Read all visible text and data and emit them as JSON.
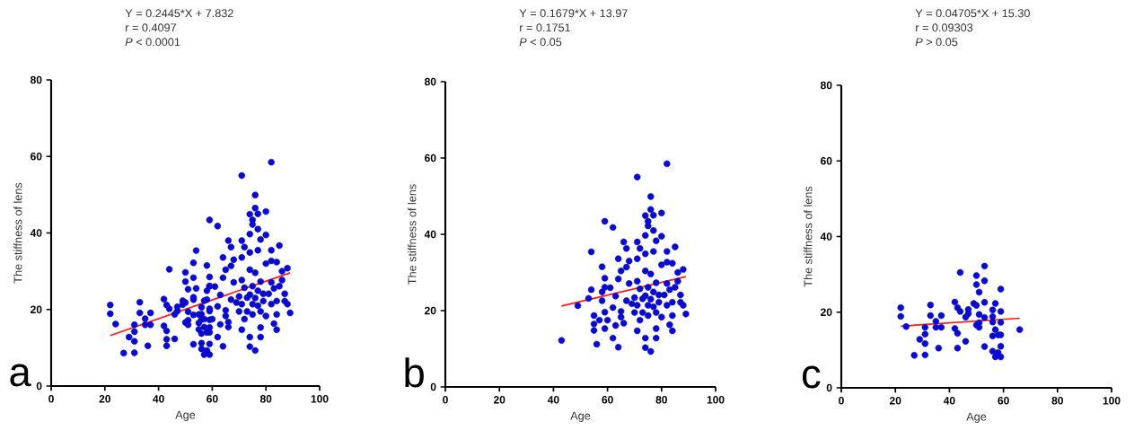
{
  "chart_data": [
    {
      "type": "scatter",
      "title": "Y = 0.2445*X + 7.832",
      "annotations": [
        "r = 0.4097",
        "*P* < 0.0001",
        "a"
      ],
      "xlabel": "Age",
      "ylabel": "The stiffness of lens",
      "xlim": [
        0,
        100
      ],
      "ylim": [
        0,
        80
      ],
      "xticks": [
        0,
        20,
        40,
        60,
        80,
        100
      ],
      "yticks": [
        0,
        20,
        40,
        60,
        80
      ],
      "series": [
        {
          "marker": "circle",
          "color": "#0a0acd",
          "x": [
            22,
            22,
            24,
            29,
            27,
            31,
            31,
            31,
            31,
            33,
            33,
            35,
            35,
            36,
            37,
            37,
            42,
            42,
            43,
            43,
            43,
            44,
            44,
            46,
            46,
            47,
            47,
            49,
            50,
            50,
            50,
            50,
            51,
            51,
            51,
            51,
            53,
            53,
            53,
            53,
            53,
            56,
            56,
            56,
            56,
            56,
            57,
            57,
            57,
            58,
            58,
            59,
            59,
            59,
            59,
            59,
            59,
            66,
            43,
            49,
            53,
            54,
            54,
            55,
            55,
            55,
            56,
            57,
            58,
            58,
            58,
            59,
            59,
            59,
            59,
            59,
            60,
            61,
            62,
            62,
            62,
            63,
            63,
            64,
            64,
            64,
            65,
            65,
            65,
            66,
            66,
            67,
            67,
            67,
            68,
            68,
            69,
            70,
            70,
            71,
            71,
            71,
            71,
            71,
            71,
            72,
            72,
            72,
            73,
            73,
            74,
            74,
            74,
            74,
            74,
            74,
            74,
            75,
            75,
            75,
            75,
            75,
            76,
            76,
            76,
            76,
            76,
            77,
            77,
            77,
            77,
            77,
            78,
            78,
            78,
            78,
            78,
            79,
            79,
            80,
            80,
            80,
            80,
            81,
            82,
            82,
            82,
            82,
            82,
            83,
            83,
            84,
            84,
            84,
            84,
            85,
            85,
            86,
            86,
            87,
            87,
            88,
            88,
            89
          ],
          "values": [
            21.2,
            18.9,
            16.2,
            12.8,
            8.6,
            16.0,
            14.2,
            11.7,
            8.7,
            21.9,
            19.1,
            17.6,
            16.0,
            10.5,
            19.1,
            16.0,
            22.7,
            15.7,
            21.2,
            14.4,
            10.5,
            30.5,
            20.2,
            12.3,
            18.7,
            20.7,
            19.6,
            22.3,
            29.7,
            27.3,
            21.8,
            16.6,
            25.3,
            19.4,
            17.2,
            16.0,
            32.2,
            28.3,
            22.6,
            18.6,
            10.9,
            20.6,
            18.8,
            17.4,
            13.7,
            9.7,
            22.3,
            15.4,
            8.2,
            9.3,
            14.0,
            26.1,
            20.2,
            17.3,
            14.0,
            11.0,
            8.2,
            15.4,
            12.2,
            21.3,
            23.2,
            25.5,
            35.4,
            18.7,
            16.5,
            14.8,
            11.2,
            17.5,
            22.6,
            24.9,
            31.5,
            43.4,
            28.5,
            26.1,
            19.6,
            15.3,
            17.5,
            26.0,
            41.8,
            20.8,
            12.8,
            16.1,
            23.8,
            28.3,
            33.6,
            10.4,
            30.4,
            19.8,
            18.3,
            38.0,
            16.7,
            36.3,
            31.4,
            22.6,
            27.1,
            33.0,
            21.8,
            19.5,
            23.4,
            55.0,
            38.0,
            33.6,
            27.7,
            14.7,
            21.4,
            36.3,
            17.5,
            25.7,
            23.1,
            19.5,
            44.9,
            39.7,
            34.9,
            12.8,
            10.3,
            30.4,
            23.9,
            43.4,
            42.2,
            18.7,
            21.4,
            26.1,
            49.9,
            46.5,
            29.6,
            9.3,
            23.0,
            45.0,
            41.0,
            35.5,
            21.0,
            24.9,
            38.3,
            12.8,
            27.3,
            15.3,
            19.5,
            24.1,
            22.2,
            45.6,
            39.5,
            32.0,
            18.3,
            24.1,
            58.5,
            35.5,
            32.7,
            27.1,
            21.4,
            16.3,
            25.5,
            32.4,
            14.7,
            18.7,
            22.2,
            36.7,
            26.1,
            30.0,
            27.7,
            24.1,
            22.2,
            30.8,
            21.4,
            19.1
          ]
        },
        {
          "type": "line",
          "marker": "none",
          "color": "#ff1a1a",
          "x": [
            22,
            89
          ],
          "values": [
            13.2,
            29.6
          ]
        }
      ]
    },
    {
      "type": "scatter",
      "title": "Y = 0.1679*X + 13.97",
      "annotations": [
        "r = 0.1751",
        "*P* < 0.05",
        "b"
      ],
      "xlabel": "Age",
      "ylabel": "The stiffness of lens",
      "xlim": [
        0,
        100
      ],
      "ylim": [
        0,
        80
      ],
      "xticks": [
        0,
        20,
        40,
        60,
        80,
        100
      ],
      "yticks": [
        0,
        20,
        40,
        60,
        80
      ],
      "series": [
        {
          "marker": "circle",
          "color": "#0a0acd",
          "x": [
            43,
            49,
            53,
            54,
            54,
            55,
            55,
            55,
            56,
            57,
            58,
            58,
            58,
            59,
            59,
            59,
            59,
            59,
            60,
            61,
            62,
            62,
            62,
            63,
            63,
            64,
            64,
            64,
            65,
            65,
            65,
            66,
            66,
            67,
            67,
            67,
            68,
            68,
            69,
            70,
            70,
            71,
            71,
            71,
            71,
            71,
            71,
            72,
            72,
            72,
            73,
            73,
            74,
            74,
            74,
            74,
            74,
            74,
            74,
            75,
            75,
            75,
            75,
            75,
            76,
            76,
            76,
            76,
            76,
            77,
            77,
            77,
            77,
            77,
            78,
            78,
            78,
            78,
            78,
            79,
            79,
            80,
            80,
            80,
            80,
            81,
            82,
            82,
            82,
            82,
            82,
            83,
            83,
            84,
            84,
            84,
            84,
            85,
            85,
            86,
            86,
            87,
            87,
            88,
            88,
            89
          ],
          "values": [
            12.2,
            21.3,
            23.2,
            25.5,
            35.4,
            18.7,
            16.5,
            14.8,
            11.2,
            17.5,
            22.6,
            24.9,
            31.5,
            43.4,
            28.5,
            26.1,
            19.6,
            15.3,
            17.5,
            26.0,
            41.8,
            20.8,
            12.8,
            16.1,
            23.8,
            28.3,
            33.6,
            10.4,
            30.4,
            19.8,
            18.3,
            38.0,
            16.7,
            36.3,
            31.4,
            22.6,
            27.1,
            33.0,
            21.8,
            19.5,
            23.4,
            55.0,
            38.0,
            33.6,
            27.7,
            14.7,
            21.4,
            36.3,
            17.5,
            25.7,
            23.1,
            19.5,
            44.9,
            39.7,
            34.9,
            12.8,
            10.3,
            30.4,
            23.9,
            43.4,
            42.2,
            18.7,
            21.4,
            26.1,
            49.9,
            46.5,
            29.6,
            9.3,
            23.0,
            45.0,
            41.0,
            35.5,
            21.0,
            24.9,
            38.3,
            12.8,
            27.3,
            15.3,
            19.5,
            24.1,
            22.2,
            45.6,
            39.5,
            32.0,
            18.3,
            24.1,
            58.5,
            35.5,
            32.7,
            27.1,
            21.4,
            16.3,
            25.5,
            32.4,
            14.7,
            18.7,
            22.2,
            36.7,
            26.1,
            30.0,
            27.7,
            24.1,
            22.2,
            30.8,
            21.4,
            19.1
          ]
        },
        {
          "type": "line",
          "marker": "none",
          "color": "#ff1a1a",
          "x": [
            43,
            89
          ],
          "values": [
            21.2,
            28.9
          ]
        }
      ]
    },
    {
      "type": "scatter",
      "title": "Y = 0.04705*X + 15.30",
      "annotations": [
        "r = 0.09303",
        "*P* > 0.05",
        "c"
      ],
      "xlabel": "Age",
      "ylabel": "The stiffness of lens",
      "xlim": [
        0,
        100
      ],
      "ylim": [
        0,
        80
      ],
      "xticks": [
        0,
        20,
        40,
        60,
        80,
        100
      ],
      "yticks": [
        0,
        20,
        40,
        60,
        80
      ],
      "series": [
        {
          "marker": "circle",
          "color": "#0a0acd",
          "x": [
            22,
            22,
            24,
            29,
            27,
            31,
            31,
            31,
            31,
            33,
            33,
            35,
            35,
            36,
            37,
            37,
            42,
            42,
            43,
            43,
            43,
            44,
            44,
            46,
            46,
            47,
            47,
            49,
            50,
            50,
            50,
            50,
            51,
            51,
            51,
            51,
            53,
            53,
            53,
            53,
            53,
            56,
            56,
            56,
            56,
            56,
            57,
            57,
            57,
            58,
            58,
            59,
            59,
            59,
            59,
            59,
            59,
            66
          ],
          "values": [
            21.2,
            18.9,
            16.2,
            12.8,
            8.6,
            16.0,
            14.2,
            11.7,
            8.7,
            21.9,
            19.1,
            17.6,
            16.0,
            10.5,
            19.1,
            16.0,
            22.7,
            15.7,
            21.2,
            14.4,
            10.5,
            30.5,
            20.2,
            12.3,
            18.7,
            20.7,
            19.6,
            22.3,
            29.7,
            27.3,
            21.8,
            16.6,
            25.3,
            19.4,
            17.2,
            16.0,
            32.2,
            28.3,
            22.6,
            18.6,
            10.9,
            20.6,
            18.8,
            17.4,
            13.7,
            9.7,
            22.3,
            15.4,
            8.2,
            9.3,
            14.0,
            26.1,
            20.2,
            17.3,
            14.0,
            11.0,
            8.2,
            15.4
          ]
        },
        {
          "type": "line",
          "marker": "none",
          "color": "#ff1a1a",
          "x": [
            22,
            66
          ],
          "values": [
            16.3,
            18.4
          ]
        }
      ]
    }
  ]
}
